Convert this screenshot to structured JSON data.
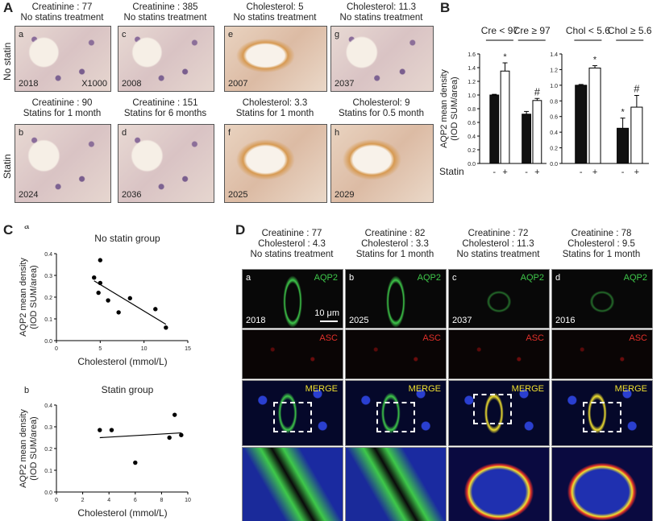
{
  "panelA": {
    "label": "A",
    "row_labels": [
      "No statin",
      "Statin"
    ],
    "images": [
      {
        "caption1": "Creatinine : 77",
        "caption2": "No statins treatment",
        "letter": "a",
        "id": "2018",
        "mag": "X1000",
        "style": "hist"
      },
      {
        "caption1": "Creatinine : 385",
        "caption2": "No statins treatment",
        "letter": "c",
        "id": "2008",
        "mag": "",
        "style": "hist"
      },
      {
        "caption1": "Cholesterol: 5",
        "caption2": "No statins treatment",
        "letter": "e",
        "id": "2007",
        "mag": "",
        "style": "org"
      },
      {
        "caption1": "Cholesterol: 11.3",
        "caption2": "No statins treatment",
        "letter": "g",
        "id": "2037",
        "mag": "",
        "style": "hist"
      },
      {
        "caption1": "Creatinine : 90",
        "caption2": "Statins for 1 month",
        "letter": "b",
        "id": "2024",
        "mag": "",
        "style": "hist"
      },
      {
        "caption1": "Creatinine : 151",
        "caption2": "Statins for 6 months",
        "letter": "d",
        "id": "2036",
        "mag": "",
        "style": "hist"
      },
      {
        "caption1": "Cholesterol: 3.3",
        "caption2": "Statins  for  1 month",
        "letter": "f",
        "id": "2025",
        "mag": "",
        "style": "org"
      },
      {
        "caption1": "Cholesterol: 9",
        "caption2": "Statins  for  0.5 month",
        "letter": "h",
        "id": "2029",
        "mag": "",
        "style": "org"
      }
    ]
  },
  "panelB": {
    "label": "B",
    "statin_label": "Statin",
    "minus": "-",
    "plus": "+"
  },
  "panelC": {
    "label": "C"
  },
  "panelD": {
    "label": "D",
    "columns": [
      {
        "caption1": "Creatinine : 77",
        "caption2": "Cholesterol : 4.3",
        "caption3": "No statins treatment",
        "letter": "a",
        "id": "2018"
      },
      {
        "caption1": "Creatinine : 82",
        "caption2": "Cholesterol : 3.3",
        "caption3": "Statins for 1 month",
        "letter": "b",
        "id": "2025"
      },
      {
        "caption1": "Creatinine : 72",
        "caption2": "Cholesterol : 11.3",
        "caption3": "No statins treatment",
        "letter": "c",
        "id": "2037"
      },
      {
        "caption1": "Creatinine : 78",
        "caption2": "Cholesterol : 9.5",
        "caption3": "Statins for 1 month",
        "letter": "d",
        "id": "2016"
      }
    ],
    "row_labels": [
      "AQP2",
      "ASC",
      "MERGE"
    ],
    "scale_bar": "10 μm",
    "colors": {
      "aqp2": "#3ec84a",
      "asc": "#e0302a",
      "merge": "#f0e030",
      "nuclei": "#2a3fd0"
    }
  },
  "chart_data": [
    {
      "type": "bar",
      "panel": "B-left",
      "ylabel": "AQP2 mean density\n(IOD SUM/area)",
      "ylim": [
        0,
        1.6
      ],
      "yticks": [
        "0.0",
        "0.2",
        "0.4",
        "0.6",
        "0.8",
        "1.0",
        "1.2",
        "1.4",
        "1.6"
      ],
      "groups": [
        "Cre < 97",
        "Cre ≥ 97"
      ],
      "categories": [
        "-",
        "+",
        "-",
        "+"
      ],
      "series": [
        {
          "values": [
            1.0,
            1.35,
            0.72,
            0.92
          ],
          "errors": [
            0.01,
            0.12,
            0.04,
            0.03
          ],
          "fill": [
            "#111111",
            "#ffffff",
            "#111111",
            "#ffffff"
          ]
        }
      ],
      "annotations": [
        "",
        "*",
        "",
        "#"
      ]
    },
    {
      "type": "bar",
      "panel": "B-right",
      "ylim": [
        0,
        1.4
      ],
      "yticks": [
        "0.0",
        "0.2",
        "0.4",
        "0.6",
        "0.8",
        "1.0",
        "1.2",
        "1.4"
      ],
      "groups": [
        "Chol < 5.6",
        "Chol ≥  5.6"
      ],
      "categories": [
        "-",
        "+",
        "-",
        "+"
      ],
      "series": [
        {
          "values": [
            1.0,
            1.22,
            0.45,
            0.72
          ],
          "errors": [
            0.01,
            0.03,
            0.13,
            0.15
          ],
          "fill": [
            "#111111",
            "#ffffff",
            "#111111",
            "#ffffff"
          ]
        }
      ],
      "annotations": [
        "",
        "*",
        "*",
        "#"
      ]
    },
    {
      "type": "scatter",
      "panel": "C-a",
      "sublabel": "a",
      "title": "No statin group",
      "xlabel": "Cholesterol  (mmol/L)",
      "ylabel": "AQP2 mean density\n(IOD SUM/area)",
      "xlim": [
        0,
        15
      ],
      "ylim": [
        0,
        0.4
      ],
      "xticks": [
        0,
        5,
        10,
        15
      ],
      "yticks": [
        "0.0",
        "0.1",
        "0.2",
        "0.3",
        "0.4"
      ],
      "x": [
        4.3,
        5.0,
        5.0,
        4.8,
        5.9,
        7.1,
        8.4,
        11.3,
        12.5
      ],
      "y": [
        0.29,
        0.37,
        0.265,
        0.22,
        0.185,
        0.13,
        0.195,
        0.145,
        0.06
      ],
      "fit": {
        "x": [
          4.3,
          12.5
        ],
        "y": [
          0.275,
          0.075
        ]
      }
    },
    {
      "type": "scatter",
      "panel": "C-b",
      "sublabel": "b",
      "title": "Statin group",
      "xlabel": "Cholesterol  (mmol/L)",
      "ylabel": "AQP2 mean density\n(IOD SUM/area)",
      "xlim": [
        0,
        10
      ],
      "ylim": [
        0,
        0.4
      ],
      "xticks": [
        0,
        2,
        4,
        6,
        8,
        10
      ],
      "yticks": [
        "0.0",
        "0.1",
        "0.2",
        "0.3",
        "0.4"
      ],
      "x": [
        3.3,
        4.2,
        6.0,
        8.6,
        9.0,
        9.5
      ],
      "y": [
        0.285,
        0.285,
        0.135,
        0.25,
        0.355,
        0.262
      ],
      "fit": {
        "x": [
          3.3,
          9.5
        ],
        "y": [
          0.25,
          0.272
        ]
      }
    }
  ]
}
